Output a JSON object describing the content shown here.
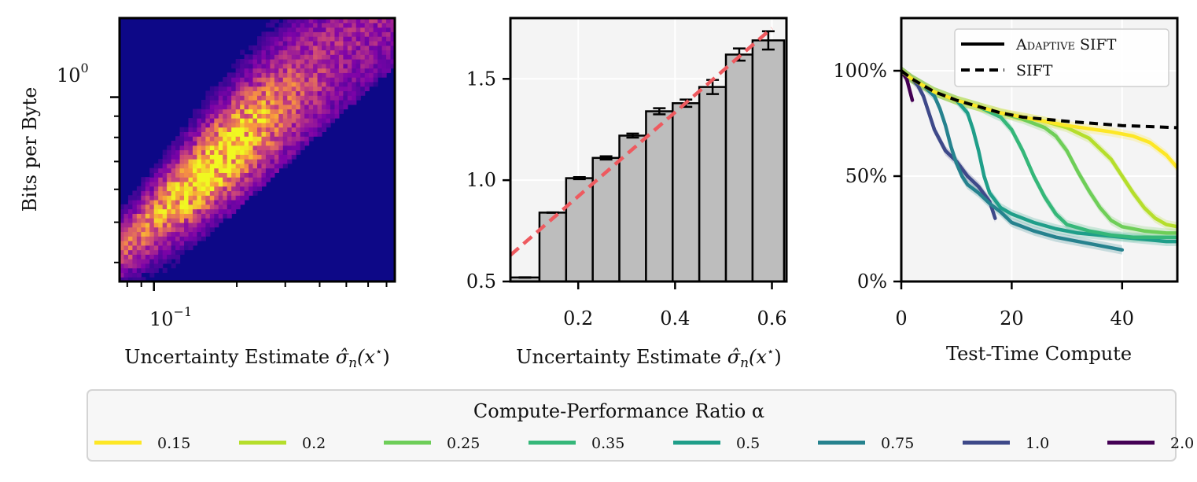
{
  "chart_data": [
    {
      "type": "heatmap",
      "panel": "left",
      "xlabel": "Uncertainty Estimate σ̂n(x⋆)",
      "ylabel": "Bits per Byte",
      "xscale": "log",
      "yscale": "log",
      "xlim": [
        0.075,
        0.75
      ],
      "ylim": [
        0.36,
        1.55
      ],
      "x_ticks": [
        {
          "value": 0.1,
          "base": "10",
          "exp": "−1"
        }
      ],
      "y_ticks": [
        {
          "value": 1.0,
          "base": "10",
          "exp": "0"
        }
      ],
      "colormap": "plasma",
      "density_ridge": "counts concentrated along a band rising from (0.08, 0.4) to (0.6, 1.45), densest near x=0.15–0.3, y=0.8–1.2"
    },
    {
      "type": "bar",
      "panel": "middle",
      "xlabel": "Uncertainty Estimate σ̂n(x⋆)",
      "ylabel": "",
      "xlim": [
        0.06,
        0.63
      ],
      "ylim": [
        0.5,
        1.8
      ],
      "x_ticks": [
        "0.2",
        "0.4",
        "0.6"
      ],
      "y_ticks": [
        "0.5",
        "1.0",
        "1.5"
      ],
      "bin_edges": [
        0.06,
        0.12,
        0.175,
        0.23,
        0.285,
        0.34,
        0.395,
        0.45,
        0.505,
        0.56,
        0.625
      ],
      "values": [
        0.52,
        0.84,
        1.01,
        1.11,
        1.22,
        1.34,
        1.38,
        1.46,
        1.62,
        1.69
      ],
      "errors": [
        0.0,
        0.0,
        0.005,
        0.008,
        0.01,
        0.015,
        0.018,
        0.035,
        0.03,
        0.045
      ],
      "fit_line": {
        "x": [
          0.06,
          0.6
        ],
        "y": [
          0.63,
          1.75
        ],
        "style": "dashed",
        "color": "#ee5a5f"
      },
      "bar_color": "#bdbdbd"
    },
    {
      "type": "line",
      "panel": "right",
      "xlabel": "Test-Time Compute",
      "ylabel": "",
      "xlim": [
        0,
        50
      ],
      "ylim": [
        0,
        125
      ],
      "x_ticks": [
        "0",
        "20",
        "40"
      ],
      "y_ticks": [
        "0%",
        "50%",
        "100%"
      ],
      "legend": {
        "position": "top-right",
        "entries": [
          {
            "label": "Adaptive SIFT",
            "smallcaps": true,
            "style": "solid"
          },
          {
            "label": "SIFT",
            "style": "dashed"
          }
        ]
      },
      "sift_baseline": {
        "x": [
          0,
          2,
          4,
          6,
          8,
          10,
          14,
          18,
          22,
          26,
          30,
          35,
          40,
          45,
          50
        ],
        "y": [
          100,
          96,
          93,
          90,
          88,
          86,
          83,
          80,
          78,
          77,
          76,
          75,
          74,
          73.5,
          73
        ]
      },
      "series": [
        {
          "alpha": "0.15",
          "color": "#fde725",
          "x": [
            0,
            2,
            4,
            6,
            8,
            10,
            14,
            18,
            22,
            26,
            30,
            34,
            38,
            42,
            45,
            48,
            50
          ],
          "y": [
            100,
            96,
            93,
            90,
            88,
            86,
            83,
            80,
            78,
            76,
            74,
            72.5,
            71,
            69,
            66,
            60,
            54
          ]
        },
        {
          "alpha": "0.2",
          "color": "#b5de2b",
          "x": [
            0,
            2,
            4,
            6,
            8,
            10,
            14,
            18,
            22,
            26,
            30,
            34,
            38,
            40,
            42,
            44,
            46,
            48,
            50
          ],
          "y": [
            100,
            96,
            93,
            90,
            88,
            86,
            83,
            80,
            78,
            76,
            73,
            68,
            58,
            50,
            42,
            35,
            30,
            27,
            26
          ]
        },
        {
          "alpha": "0.25",
          "color": "#6ece58",
          "x": [
            0,
            2,
            4,
            6,
            8,
            10,
            14,
            18,
            22,
            26,
            28,
            30,
            32,
            34,
            36,
            38,
            40,
            44,
            48,
            50
          ],
          "y": [
            100,
            96,
            93,
            90,
            88,
            86,
            83,
            80,
            77,
            73,
            69,
            62,
            52,
            43,
            35,
            29,
            26,
            24,
            23,
            23
          ]
        },
        {
          "alpha": "0.35",
          "color": "#35b779",
          "x": [
            0,
            2,
            4,
            6,
            8,
            10,
            14,
            18,
            20,
            22,
            24,
            26,
            28,
            30,
            34,
            38,
            42,
            46,
            50
          ],
          "y": [
            100,
            96,
            93,
            90,
            88,
            86,
            83,
            78,
            72,
            62,
            50,
            40,
            32,
            27,
            24,
            22,
            21,
            21,
            21
          ]
        },
        {
          "alpha": "0.5",
          "color": "#1f9e89",
          "x": [
            0,
            2,
            4,
            6,
            8,
            10,
            12,
            13,
            14,
            15,
            16,
            18,
            20,
            24,
            28,
            32,
            36,
            40,
            44,
            48,
            50
          ],
          "y": [
            100,
            96,
            93,
            90,
            88,
            86,
            80,
            72,
            62,
            50,
            42,
            35,
            32,
            28,
            25,
            23,
            22,
            21,
            20,
            19,
            19
          ]
        },
        {
          "alpha": "0.75",
          "color": "#26828e",
          "x": [
            0,
            2,
            4,
            6,
            7,
            8,
            9,
            10,
            11,
            12,
            14,
            16,
            18,
            20,
            24,
            28,
            32,
            36,
            40
          ],
          "y": [
            100,
            96,
            93,
            88,
            82,
            74,
            64,
            56,
            50,
            46,
            42,
            37,
            33,
            28,
            24,
            21,
            19,
            17,
            15
          ]
        },
        {
          "alpha": "1.0",
          "color": "#3e4989",
          "x": [
            0,
            2,
            3,
            4,
            5,
            6,
            8,
            10,
            12,
            14,
            16,
            17
          ],
          "y": [
            100,
            96,
            93,
            88,
            80,
            72,
            62,
            57,
            50,
            45,
            38,
            30
          ]
        },
        {
          "alpha": "2.0",
          "color": "#440154",
          "x": [
            0,
            1,
            2
          ],
          "y": [
            100,
            96,
            86
          ]
        }
      ]
    }
  ],
  "colorbar_legend": {
    "title": "Compute-Performance Ratio α",
    "items": [
      {
        "label": "0.15",
        "color": "#fde725"
      },
      {
        "label": "0.2",
        "color": "#b5de2b"
      },
      {
        "label": "0.25",
        "color": "#6ece58"
      },
      {
        "label": "0.35",
        "color": "#35b779"
      },
      {
        "label": "0.5",
        "color": "#1f9e89"
      },
      {
        "label": "0.75",
        "color": "#26828e"
      },
      {
        "label": "1.0",
        "color": "#3e4989"
      },
      {
        "label": "2.0",
        "color": "#440154"
      }
    ]
  },
  "axis_text": {
    "ylabel_left": "Bits per Byte",
    "xlabel_unc_prefix": "Uncertainty Estimate ",
    "xlabel_unc_sigma": "σ̂",
    "xlabel_unc_sub": "n",
    "xlabel_unc_arg": "(x",
    "xlabel_unc_star": "⋆",
    "xlabel_unc_close": ")",
    "xlabel_right": "Test-Time Compute"
  }
}
